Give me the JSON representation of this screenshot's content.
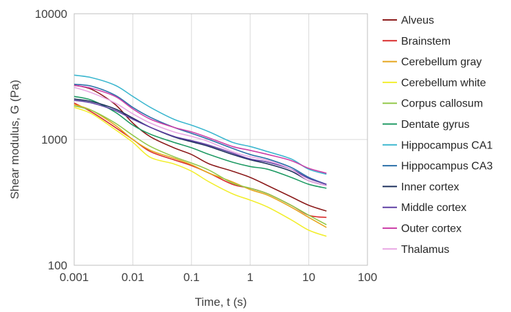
{
  "chart_data": {
    "type": "line",
    "xscale": "log",
    "yscale": "log",
    "xlim": [
      0.001,
      100
    ],
    "ylim": [
      100,
      10000
    ],
    "grid": true,
    "legend_position": "right",
    "xlabel": "Time, t (s)",
    "ylabel": "Shear modulus, G (Pa)",
    "x_ticks": [
      "0.001",
      "0.01",
      "0.1",
      "1",
      "10",
      "100"
    ],
    "y_ticks": [
      "100",
      "1000",
      "10000"
    ],
    "x_tick_values": [
      0.001,
      0.01,
      0.1,
      1,
      10,
      100
    ],
    "y_tick_values": [
      100,
      1000,
      10000
    ],
    "x": [
      0.001,
      0.002,
      0.005,
      0.01,
      0.02,
      0.05,
      0.1,
      0.2,
      0.5,
      1,
      2,
      5,
      10,
      20
    ],
    "series": [
      {
        "name": "Alveus",
        "color": "#8b1a1a",
        "values": [
          2700,
          2500,
          1900,
          1350,
          1050,
          860,
          760,
          640,
          560,
          500,
          430,
          350,
          300,
          270
        ]
      },
      {
        "name": "Brainstem",
        "color": "#d92b2b",
        "values": [
          1950,
          1650,
          1250,
          1000,
          800,
          690,
          620,
          540,
          440,
          410,
          370,
          300,
          250,
          240
        ]
      },
      {
        "name": "Cerebellum gray",
        "color": "#e5a51c",
        "values": [
          1900,
          1700,
          1300,
          1000,
          820,
          710,
          630,
          540,
          460,
          400,
          360,
          290,
          240,
          200
        ]
      },
      {
        "name": "Cerebellum white",
        "color": "#f2ee2e",
        "values": [
          1800,
          1600,
          1200,
          950,
          720,
          640,
          560,
          460,
          370,
          330,
          290,
          230,
          190,
          170
        ]
      },
      {
        "name": "Corpus callosum",
        "color": "#92c84a",
        "values": [
          1850,
          1700,
          1350,
          1080,
          880,
          730,
          650,
          570,
          450,
          410,
          370,
          300,
          250,
          210
        ]
      },
      {
        "name": "Dentate gyrus",
        "color": "#1e9a63",
        "values": [
          2200,
          2050,
          1650,
          1300,
          1100,
          950,
          860,
          760,
          660,
          610,
          580,
          500,
          440,
          410
        ]
      },
      {
        "name": "Hippocampus CA1",
        "color": "#3cb7cf",
        "values": [
          3250,
          3100,
          2700,
          2200,
          1800,
          1450,
          1300,
          1150,
          950,
          880,
          800,
          700,
          580,
          530
        ]
      },
      {
        "name": "Hippocampus CA3",
        "color": "#2a6fa8",
        "values": [
          2750,
          2650,
          2250,
          1800,
          1500,
          1250,
          1120,
          1000,
          850,
          760,
          700,
          600,
          500,
          440
        ]
      },
      {
        "name": "Inner cortex",
        "color": "#1c2f5c",
        "values": [
          2100,
          2000,
          1750,
          1480,
          1250,
          1050,
          960,
          880,
          760,
          690,
          640,
          560,
          470,
          430
        ]
      },
      {
        "name": "Middle cortex",
        "color": "#5e3fa3",
        "values": [
          2050,
          1950,
          1700,
          1450,
          1250,
          1060,
          980,
          900,
          780,
          700,
          660,
          580,
          490,
          440
        ]
      },
      {
        "name": "Outer cortex",
        "color": "#cc3fa8",
        "values": [
          2700,
          2550,
          2200,
          1750,
          1450,
          1250,
          1150,
          1030,
          880,
          820,
          760,
          680,
          590,
          540
        ]
      },
      {
        "name": "Thalamus",
        "color": "#e8a6e3",
        "values": [
          2600,
          2350,
          1950,
          1600,
          1350,
          1150,
          1060,
          960,
          800,
          730,
          680,
          580,
          470,
          430
        ]
      }
    ]
  }
}
